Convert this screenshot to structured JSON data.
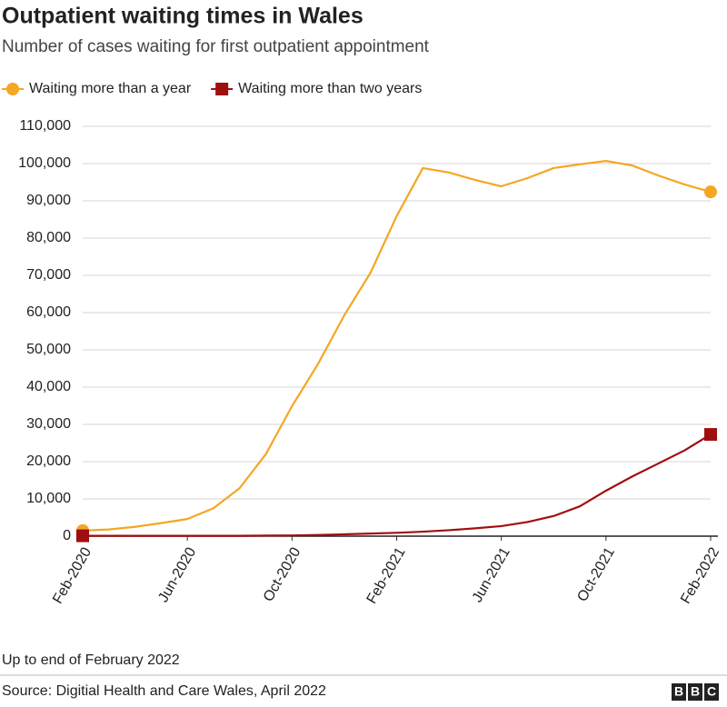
{
  "chart_data": {
    "type": "line",
    "title": "Outpatient waiting times in Wales",
    "subtitle": "Number of cases waiting for first outpatient appointment",
    "categories": [
      "Feb-2020",
      null,
      null,
      null,
      "Jun-2020",
      null,
      null,
      null,
      "Oct-2020",
      null,
      null,
      null,
      "Feb-2021",
      null,
      null,
      null,
      "Jun-2021",
      null,
      null,
      null,
      "Oct-2021",
      null,
      null,
      null,
      "Feb-2022"
    ],
    "series": [
      {
        "name": "Waiting more than a year",
        "color": "#f5a623",
        "marker": "circle",
        "values": [
          1500,
          1800,
          2500,
          3500,
          4600,
          7500,
          12900,
          22000,
          34900,
          46300,
          59300,
          70700,
          85900,
          98800,
          97600,
          95600,
          93900,
          96100,
          98800,
          99800,
          100700,
          99500,
          96800,
          94400,
          92400
        ]
      },
      {
        "name": "Waiting more than two years",
        "color": "#a00f0f",
        "marker": "square",
        "values": [
          100,
          100,
          100,
          100,
          100,
          100,
          100,
          150,
          200,
          300,
          500,
          700,
          900,
          1200,
          1600,
          2100,
          2700,
          3800,
          5400,
          8000,
          12200,
          16000,
          19500,
          23000,
          27300
        ]
      }
    ],
    "ylim": [
      0,
      110000
    ],
    "yticks": [
      0,
      {
        "value": 10000,
        "label": "10,000"
      },
      {
        "value": 20000,
        "label": "20,000"
      },
      {
        "value": 30000,
        "label": "30,000"
      },
      {
        "value": 40000,
        "label": "40,000"
      },
      {
        "value": 50000,
        "label": "50,000"
      },
      {
        "value": 60000,
        "label": "60,000"
      },
      {
        "value": 70000,
        "label": "70,000"
      },
      {
        "value": 80000,
        "label": "80,000"
      },
      {
        "value": 90000,
        "label": "90,000"
      },
      {
        "value": 100000,
        "label": "100,000"
      },
      {
        "value": 110000,
        "label": "110,000"
      }
    ],
    "grid": true,
    "note": "Up to end of February 2022",
    "source": "Source: Digitial Health and Care Wales, April 2022",
    "logo": "BBC"
  }
}
